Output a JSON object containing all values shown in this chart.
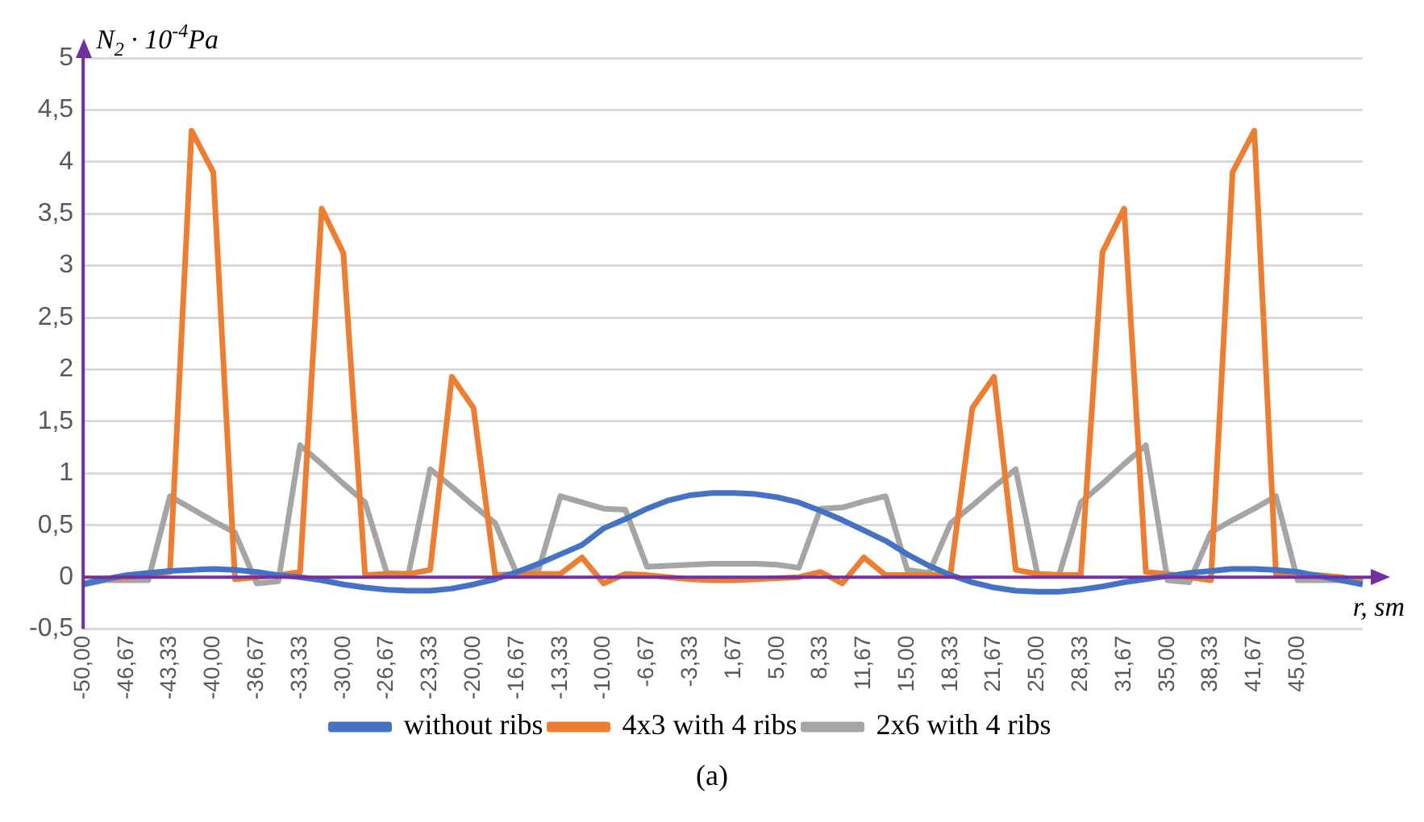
{
  "chart_data": {
    "type": "line",
    "ylabel": "N$_{2}$ · 10$^{-4}$Pa",
    "xlabel": "r, sm",
    "annotations": [
      "(a)"
    ],
    "categories": [
      "-50,00",
      null,
      "-46,67",
      null,
      "-43,33",
      null,
      "-40,00",
      null,
      "-36,67",
      null,
      "-33,33",
      null,
      "-30,00",
      null,
      "-26,67",
      null,
      "-23,33",
      null,
      "-20,00",
      null,
      "-16,67",
      null,
      "-13,33",
      null,
      "-10,00",
      null,
      "-6,67",
      null,
      "-3,33",
      null,
      "1,67",
      null,
      "5,00",
      null,
      "8,33",
      null,
      "11,67",
      null,
      "15,00",
      null,
      "18,33",
      null,
      "21,67",
      null,
      "25,00",
      null,
      "28,33",
      null,
      "31,67",
      null,
      "35,00",
      null,
      "38,33",
      null,
      "41,67",
      null,
      "45,00",
      null,
      null,
      null
    ],
    "series": [
      {
        "name": "without ribs",
        "color": "#4472c4",
        "values": [
          -0.07,
          -0.02,
          0.02,
          0.04,
          0.06,
          0.07,
          0.08,
          0.07,
          0.05,
          0.02,
          0.0,
          -0.03,
          -0.07,
          -0.1,
          -0.12,
          -0.13,
          -0.13,
          -0.11,
          -0.07,
          -0.02,
          0.05,
          0.13,
          0.22,
          0.31,
          0.47,
          0.56,
          0.66,
          0.74,
          0.79,
          0.81,
          0.81,
          0.8,
          0.77,
          0.72,
          0.64,
          0.55,
          0.45,
          0.35,
          0.22,
          0.11,
          0.02,
          -0.05,
          -0.1,
          -0.13,
          -0.14,
          -0.14,
          -0.12,
          -0.09,
          -0.05,
          -0.02,
          0.01,
          0.04,
          0.06,
          0.08,
          0.08,
          0.07,
          0.05,
          0.01,
          -0.03,
          -0.07
        ]
      },
      {
        "name": "4x3 with 4 ribs",
        "color": "#ed7d31",
        "values": [
          -0.06,
          -0.02,
          0.0,
          0.02,
          0.05,
          4.3,
          3.9,
          -0.02,
          0.0,
          0.02,
          0.05,
          3.55,
          3.12,
          0.02,
          0.03,
          0.03,
          0.07,
          1.93,
          1.63,
          0.02,
          0.03,
          0.03,
          0.03,
          0.19,
          -0.06,
          0.03,
          0.02,
          0.0,
          -0.02,
          -0.03,
          -0.03,
          -0.02,
          -0.01,
          0.0,
          0.05,
          -0.06,
          0.19,
          0.02,
          0.02,
          0.02,
          0.04,
          1.63,
          1.93,
          0.07,
          0.03,
          0.02,
          0.02,
          3.13,
          3.55,
          0.05,
          0.03,
          0.0,
          -0.03,
          3.9,
          4.3,
          0.03,
          0.03,
          0.02,
          0.0,
          -0.04
        ]
      },
      {
        "name": "2x6 with 4 ribs",
        "color": "#a5a5a5",
        "values": [
          -0.07,
          -0.03,
          -0.03,
          -0.03,
          0.78,
          0.66,
          0.54,
          0.43,
          -0.06,
          -0.04,
          1.27,
          1.09,
          0.9,
          0.72,
          0.04,
          0.03,
          1.04,
          0.87,
          0.69,
          0.52,
          0.03,
          0.07,
          0.78,
          0.72,
          0.66,
          0.65,
          0.1,
          0.11,
          0.12,
          0.13,
          0.13,
          0.13,
          0.12,
          0.09,
          0.66,
          0.67,
          0.73,
          0.78,
          0.07,
          0.04,
          0.52,
          0.69,
          0.87,
          1.04,
          0.03,
          0.02,
          0.72,
          0.9,
          1.09,
          1.27,
          -0.03,
          -0.05,
          0.43,
          0.55,
          0.66,
          0.78,
          -0.03,
          -0.03,
          -0.03,
          -0.05
        ]
      }
    ],
    "ylim": [
      -0.5,
      5
    ],
    "yticks": [
      {
        "value": -0.5,
        "label": "-0,5"
      },
      0,
      {
        "value": 0.5,
        "label": "0,5"
      },
      1,
      {
        "value": 1.5,
        "label": "1,5"
      },
      2,
      {
        "value": 2.5,
        "label": "2,5"
      },
      3,
      {
        "value": 3.5,
        "label": "3,5"
      },
      4,
      {
        "value": 4.5,
        "label": "4,5"
      },
      5
    ],
    "ref_lines": [
      {
        "axis": "y",
        "value": 0,
        "color": "#7030a0"
      }
    ],
    "grid": "y",
    "legend": "bottom",
    "marker": "none",
    "line_style": "solid"
  }
}
